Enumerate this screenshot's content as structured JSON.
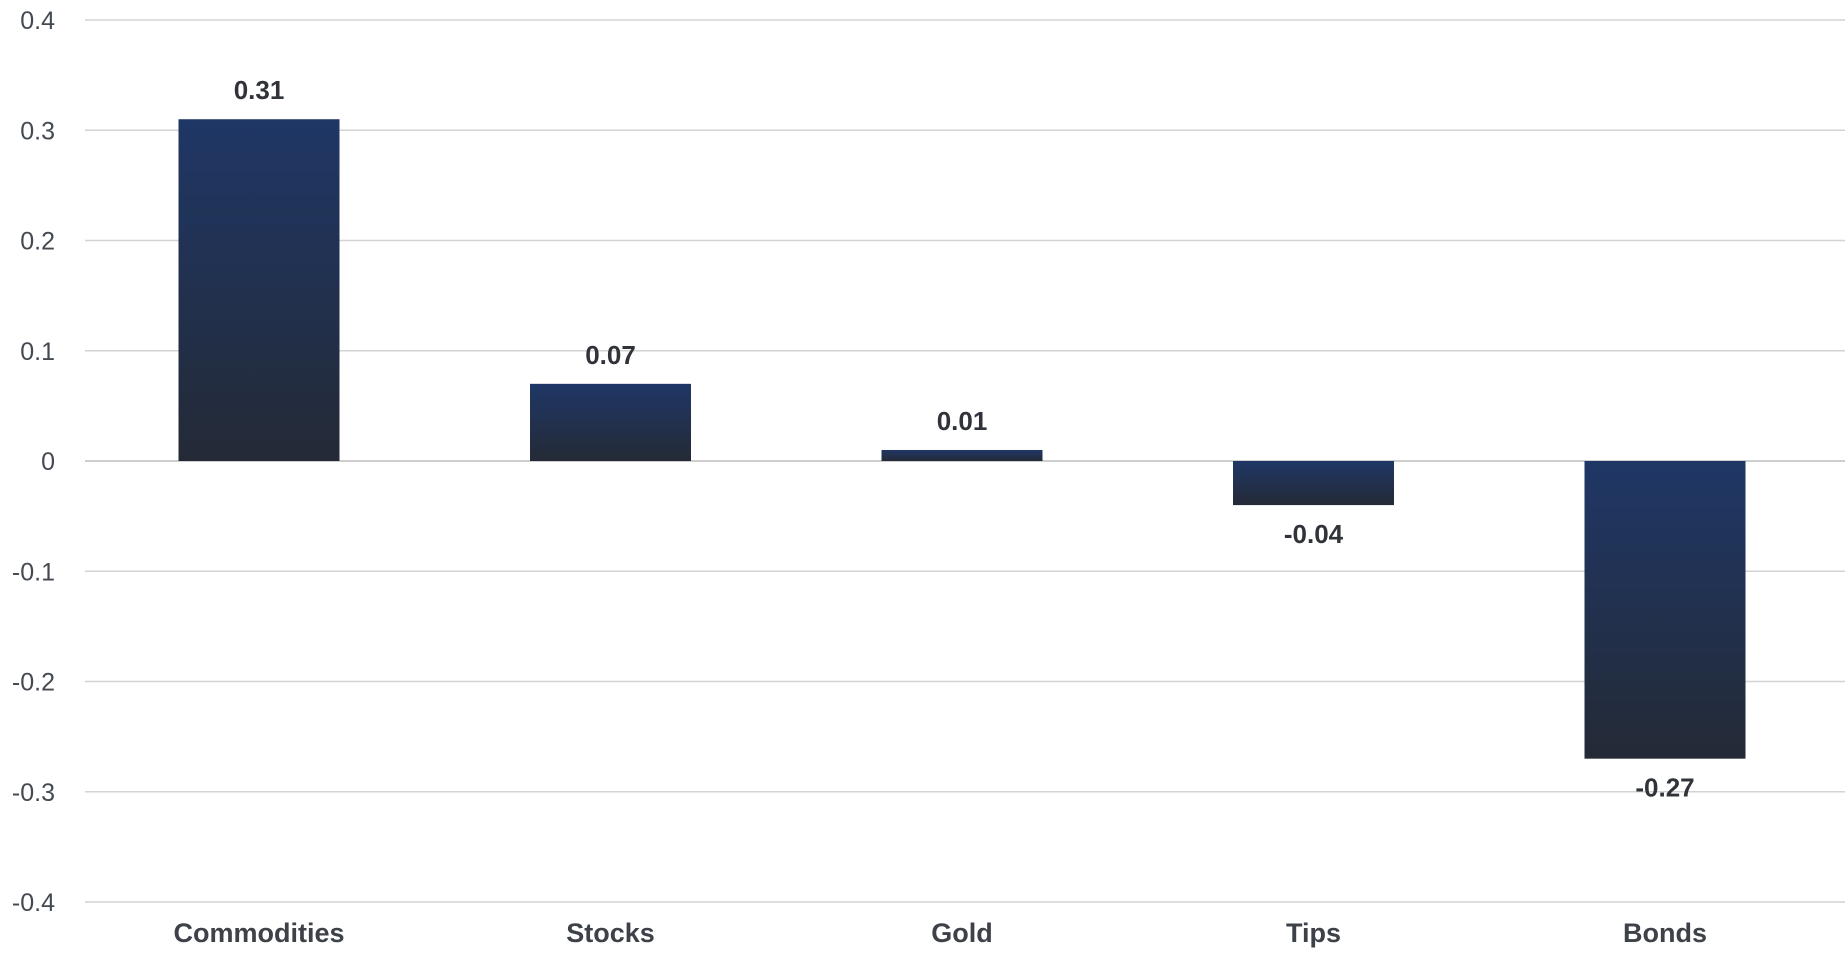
{
  "chart_data": {
    "type": "bar",
    "categories": [
      "Commodities",
      "Stocks",
      "Gold",
      "Tips",
      "Bonds"
    ],
    "values": [
      0.31,
      0.07,
      0.01,
      -0.04,
      -0.27
    ],
    "data_labels": [
      "0.31",
      "0.07",
      "0.01",
      "-0.04",
      "-0.27"
    ],
    "ylim": [
      -0.4,
      0.4
    ],
    "yticks": [
      0.4,
      0.3,
      0.2,
      0.1,
      0,
      -0.1,
      -0.2,
      -0.3,
      -0.4
    ],
    "ytick_labels": [
      "0.4",
      "0.3",
      "0.2",
      "0.1",
      "0",
      "-0.1",
      "-0.2",
      "-0.3",
      "-0.4"
    ],
    "grid": true,
    "legend": "none",
    "title": "",
    "xlabel": "",
    "ylabel": "",
    "colors": {
      "bar_top": "#1f3766",
      "bar_bottom": "#242a36",
      "grid": "#d3d3d3"
    }
  }
}
